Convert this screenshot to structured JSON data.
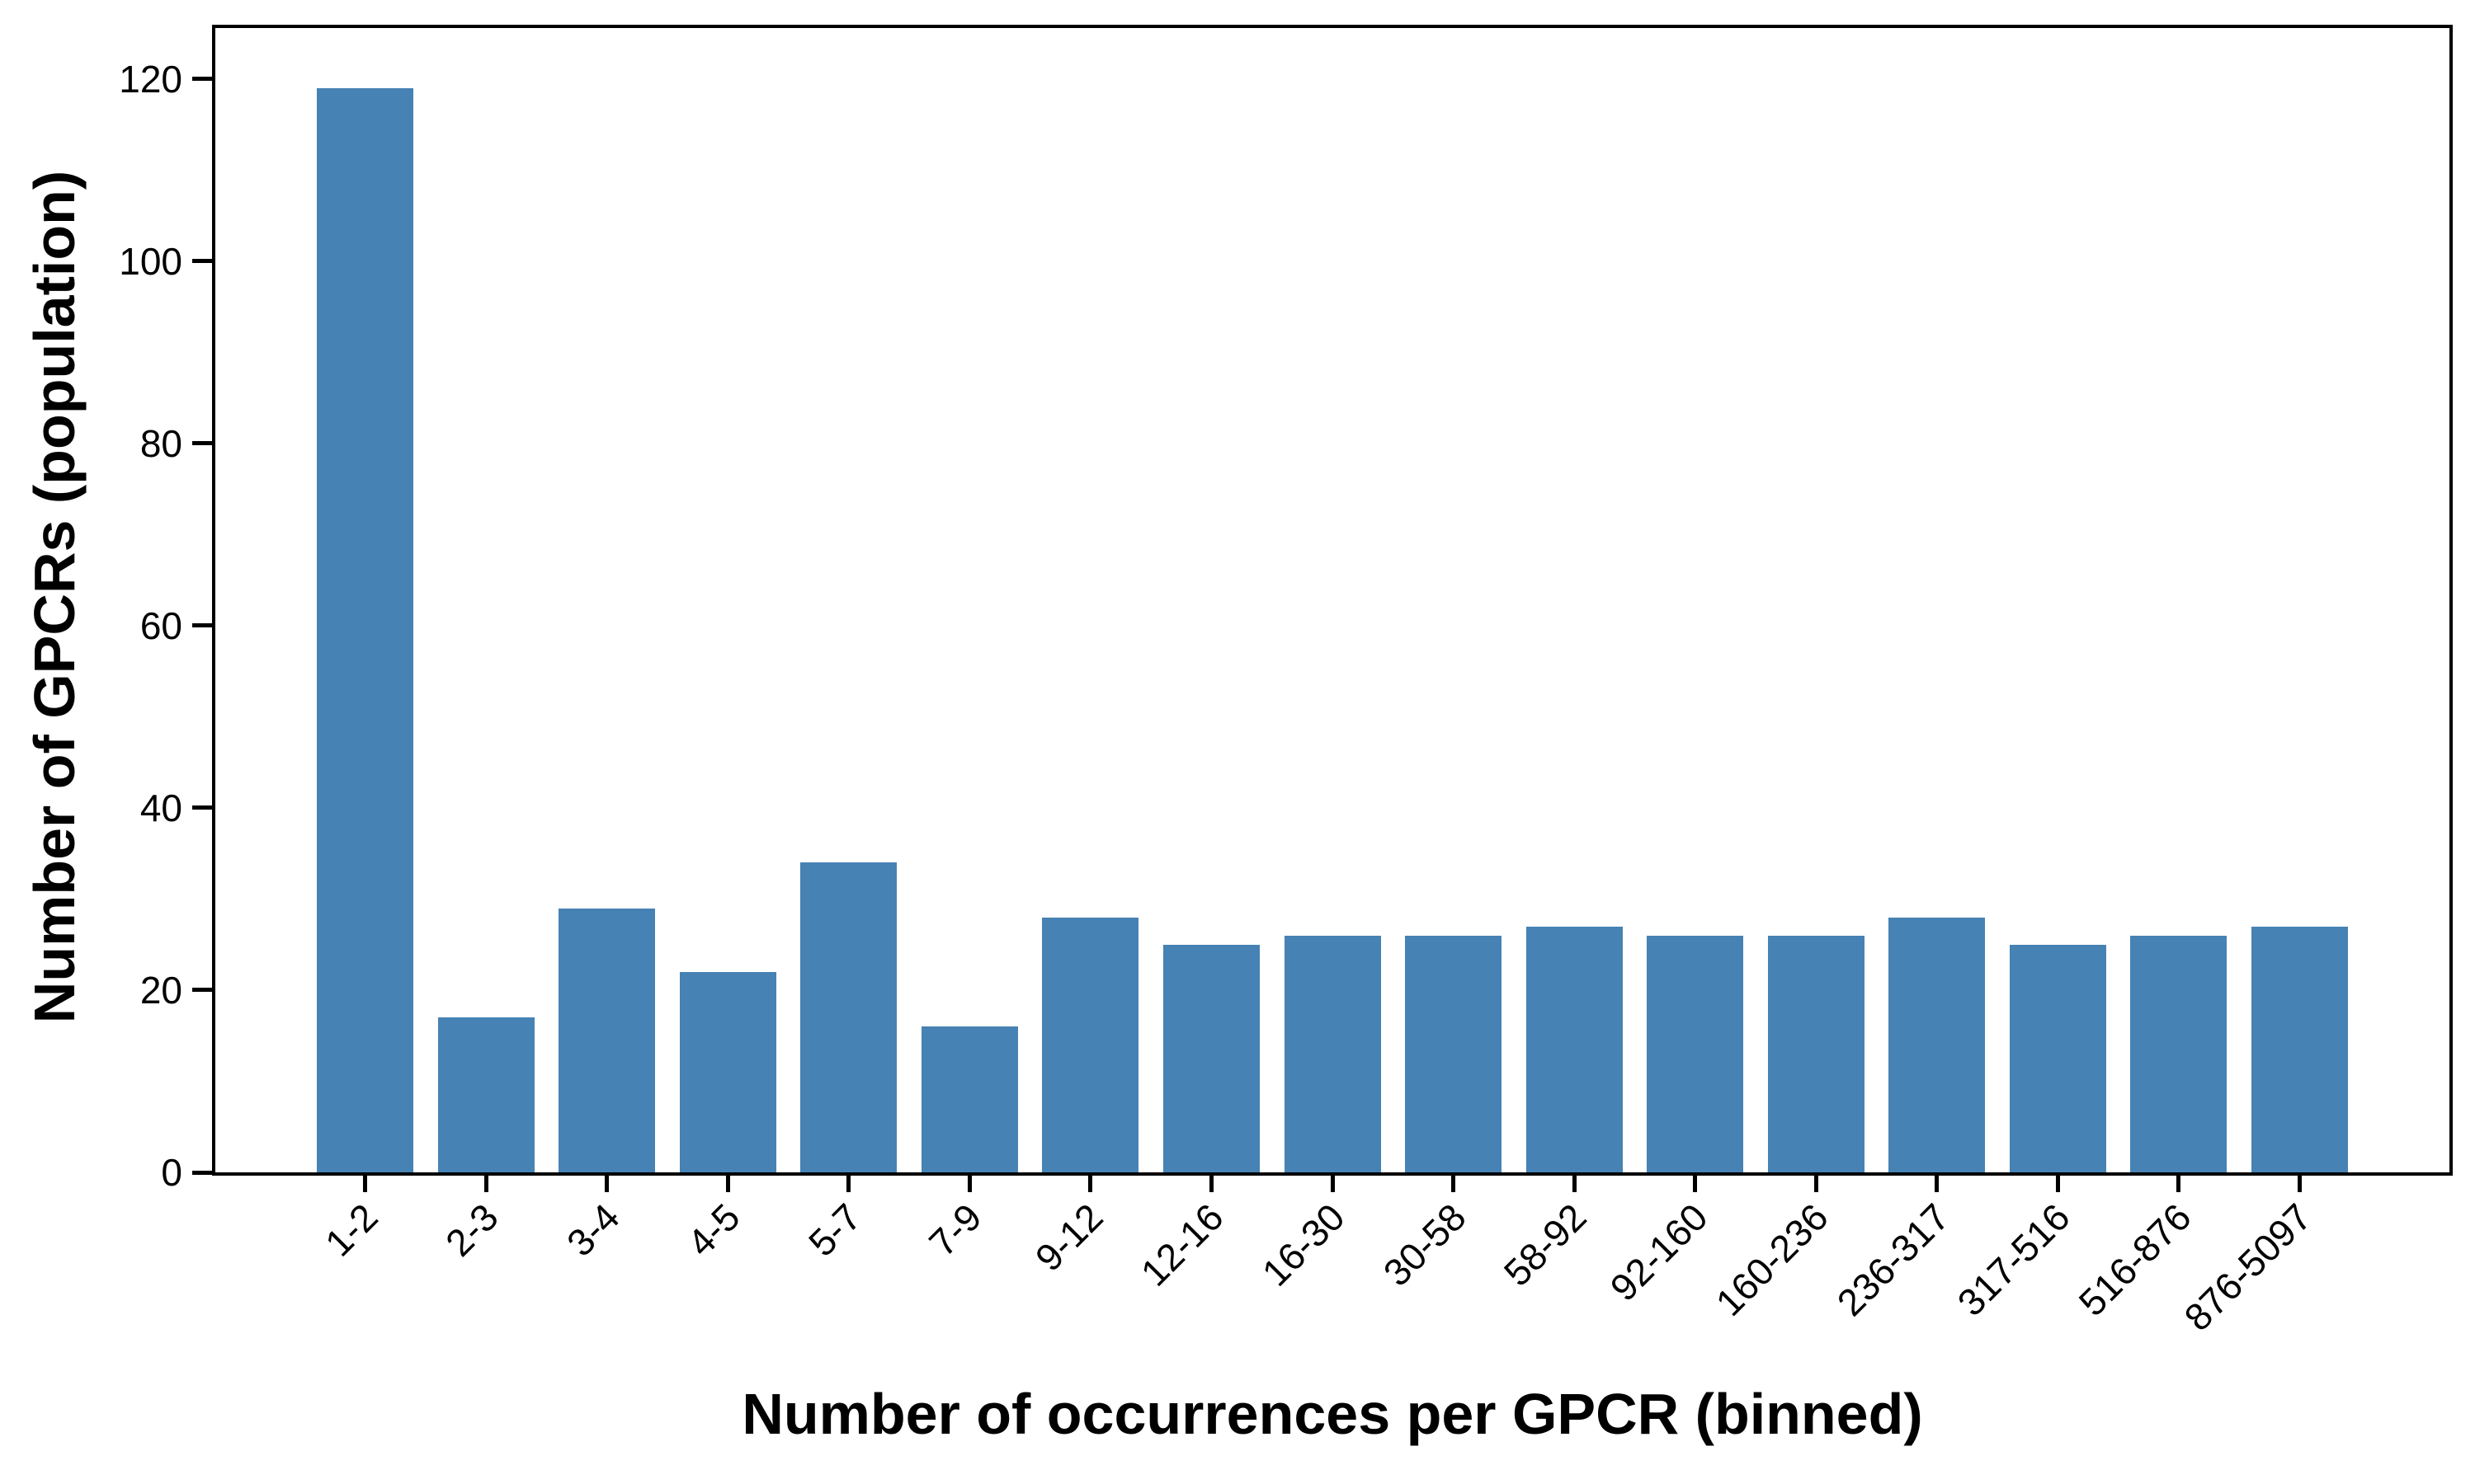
{
  "chart_data": {
    "type": "bar",
    "title": "",
    "xlabel": "Number of occurrences per GPCR (binned)",
    "ylabel": "Number of GPCRs (population)",
    "categories": [
      "1-2",
      "2-3",
      "3-4",
      "4-5",
      "5-7",
      "7-9",
      "9-12",
      "12-16",
      "16-30",
      "30-58",
      "58-92",
      "92-160",
      "160-236",
      "236-317",
      "317-516",
      "516-876",
      "876-5097"
    ],
    "values": [
      119,
      17,
      29,
      22,
      34,
      16,
      28,
      25,
      26,
      26,
      27,
      26,
      26,
      28,
      25,
      26,
      27
    ],
    "yticks": [
      0,
      20,
      40,
      60,
      80,
      100,
      120
    ],
    "ylim": [
      0,
      125.6
    ],
    "bar_color": "#4682B4",
    "axis_color": "#000000",
    "background_color": "#ffffff",
    "grid": false,
    "legend": null,
    "xtick_rotation_deg": 45
  }
}
